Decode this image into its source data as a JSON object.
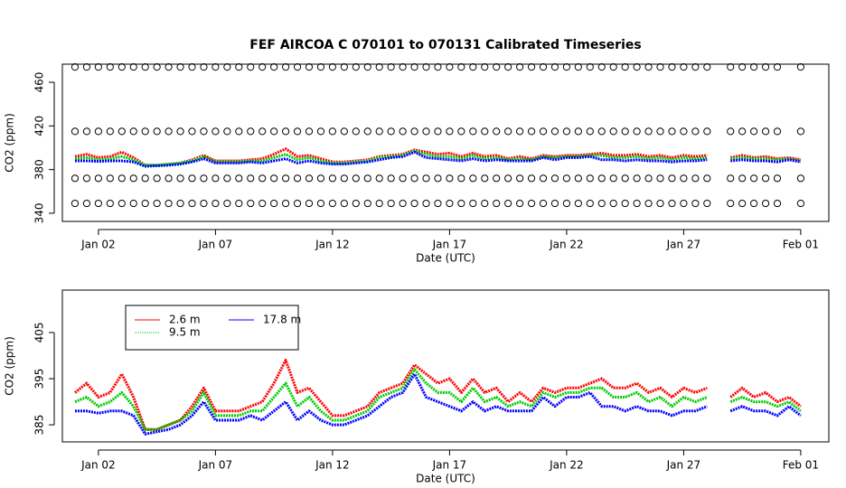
{
  "chart_data": [
    {
      "type": "scatter",
      "title": "FEF   AIRCOA  C    070101  to  070131   Calibrated Timeseries",
      "xlabel": "Date (UTC)",
      "ylabel": "CO2 (ppm)",
      "xlim": [
        0.46,
        33.2
      ],
      "ylim": [
        332.5,
        476.6
      ],
      "xticks": [
        {
          "value": 2,
          "label": "Jan 02"
        },
        {
          "value": 7,
          "label": "Jan 07"
        },
        {
          "value": 12,
          "label": "Jan 12"
        },
        {
          "value": 17,
          "label": "Jan 17"
        },
        {
          "value": 22,
          "label": "Jan 22"
        },
        {
          "value": 27,
          "label": "Jan 27"
        },
        {
          "value": 32,
          "label": "Feb 01"
        }
      ],
      "yticks": [
        340,
        380,
        420,
        460
      ],
      "x": [
        1,
        1.5,
        2,
        2.5,
        3,
        3.5,
        4,
        4.5,
        5,
        5.5,
        6,
        6.5,
        7,
        7.5,
        8,
        8.5,
        9,
        9.5,
        10,
        10.5,
        11,
        11.5,
        12,
        12.5,
        13,
        13.5,
        14,
        14.5,
        15,
        15.5,
        16,
        16.5,
        17,
        17.5,
        18,
        18.5,
        19,
        19.5,
        20,
        20.5,
        21,
        21.5,
        22,
        22.5,
        23,
        23.5,
        24,
        24.5,
        25,
        25.5,
        26,
        26.5,
        27,
        27.5,
        28,
        28.5,
        29,
        29.5,
        30,
        30.5,
        31,
        31.5,
        32
      ],
      "series": [
        {
          "color": "#000000",
          "marker": "circle",
          "values": [
            474,
            474,
            474,
            474,
            474,
            474,
            474,
            474,
            474,
            474,
            474,
            474,
            474,
            474,
            474,
            474,
            474,
            474,
            474,
            474,
            474,
            474,
            474,
            474,
            474,
            474,
            474,
            474,
            474,
            474,
            474,
            474,
            474,
            474,
            474,
            474,
            474,
            474,
            474,
            474,
            474,
            474,
            474,
            474,
            474,
            474,
            474,
            474,
            474,
            474,
            474,
            474,
            474,
            474,
            474,
            null,
            474,
            474,
            474,
            474,
            474,
            null,
            474
          ]
        },
        {
          "color": "#000000",
          "marker": "circle",
          "values": [
            415,
            415,
            415,
            415,
            415,
            415,
            415,
            415,
            415,
            415,
            415,
            415,
            415,
            415,
            415,
            415,
            415,
            415,
            415,
            415,
            415,
            415,
            415,
            415,
            415,
            415,
            415,
            415,
            415,
            415,
            415,
            415,
            415,
            415,
            415,
            415,
            415,
            415,
            415,
            415,
            415,
            415,
            415,
            415,
            415,
            415,
            415,
            415,
            415,
            415,
            415,
            415,
            415,
            415,
            415,
            null,
            415,
            415,
            415,
            415,
            415,
            null,
            415
          ]
        },
        {
          "color": "#000000",
          "marker": "circle",
          "values": [
            372,
            372,
            372,
            372,
            372,
            372,
            372,
            372,
            372,
            372,
            372,
            372,
            372,
            372,
            372,
            372,
            372,
            372,
            372,
            372,
            372,
            372,
            372,
            372,
            372,
            372,
            372,
            372,
            372,
            372,
            372,
            372,
            372,
            372,
            372,
            372,
            372,
            372,
            372,
            372,
            372,
            372,
            372,
            372,
            372,
            372,
            372,
            372,
            372,
            372,
            372,
            372,
            372,
            372,
            372,
            null,
            372,
            372,
            372,
            372,
            372,
            null,
            372
          ]
        },
        {
          "color": "#000000",
          "marker": "circle",
          "values": [
            349,
            349,
            349,
            349,
            349,
            349,
            349,
            349,
            349,
            349,
            349,
            349,
            349,
            349,
            349,
            349,
            349,
            349,
            349,
            349,
            349,
            349,
            349,
            349,
            349,
            349,
            349,
            349,
            349,
            349,
            349,
            349,
            349,
            349,
            349,
            349,
            349,
            349,
            349,
            349,
            349,
            349,
            349,
            349,
            349,
            349,
            349,
            349,
            349,
            349,
            349,
            349,
            349,
            349,
            349,
            null,
            349,
            349,
            349,
            349,
            349,
            null,
            349
          ]
        },
        {
          "color": "#ff0000",
          "marker": "dot",
          "values": [
            392,
            394,
            391,
            392,
            396,
            391,
            384,
            384,
            385,
            386,
            389,
            393,
            388,
            388,
            388,
            389,
            390,
            394,
            399,
            392,
            393,
            390,
            387,
            387,
            388,
            389,
            392,
            393,
            394,
            398,
            396,
            394,
            395,
            392,
            395,
            392,
            393,
            390,
            392,
            390,
            393,
            392,
            393,
            393,
            394,
            395,
            393,
            393,
            394,
            392,
            393,
            391,
            393,
            392,
            393,
            null,
            391,
            393,
            391,
            392,
            390,
            391,
            389
          ]
        },
        {
          "color": "#00cc00",
          "marker": "dot",
          "values": [
            390,
            391,
            389,
            390,
            392,
            389,
            384,
            384,
            385,
            386,
            388,
            392,
            387,
            387,
            387,
            388,
            388,
            391,
            394,
            389,
            391,
            388,
            386,
            386,
            387,
            388,
            391,
            392,
            393,
            397,
            394,
            392,
            392,
            390,
            393,
            390,
            391,
            389,
            390,
            389,
            392,
            391,
            392,
            392,
            393,
            393,
            391,
            391,
            392,
            390,
            391,
            389,
            391,
            390,
            391,
            null,
            390,
            391,
            390,
            390,
            389,
            390,
            388
          ]
        },
        {
          "color": "#0000ff",
          "marker": "dot",
          "values": [
            388,
            388,
            387.5,
            388,
            388,
            387,
            383,
            383.5,
            384,
            385,
            387,
            390,
            386,
            386,
            386,
            387,
            386,
            388,
            390,
            386,
            388,
            386,
            385,
            385,
            386,
            387,
            389,
            391,
            392,
            396,
            391,
            390,
            389,
            388,
            390,
            388,
            389,
            388,
            388,
            388,
            391,
            389,
            391,
            391,
            392,
            389,
            389,
            388,
            389,
            388,
            388,
            387,
            388,
            388,
            389,
            null,
            388,
            389,
            388,
            388,
            387,
            389,
            387
          ]
        }
      ]
    },
    {
      "type": "scatter",
      "xlabel": "Date (UTC)",
      "ylabel": "CO2 (ppm)",
      "xlim": [
        0.46,
        33.2
      ],
      "ylim": [
        381.3,
        414.2
      ],
      "xticks": [
        {
          "value": 2,
          "label": "Jan 02"
        },
        {
          "value": 7,
          "label": "Jan 07"
        },
        {
          "value": 12,
          "label": "Jan 12"
        },
        {
          "value": 17,
          "label": "Jan 17"
        },
        {
          "value": 22,
          "label": "Jan 22"
        },
        {
          "value": 27,
          "label": "Jan 27"
        },
        {
          "value": 32,
          "label": "Feb 01"
        }
      ],
      "yticks": [
        385,
        395,
        405
      ],
      "legend": "top-left",
      "x": [
        1,
        1.5,
        2,
        2.5,
        3,
        3.5,
        4,
        4.5,
        5,
        5.5,
        6,
        6.5,
        7,
        7.5,
        8,
        8.5,
        9,
        9.5,
        10,
        10.5,
        11,
        11.5,
        12,
        12.5,
        13,
        13.5,
        14,
        14.5,
        15,
        15.5,
        16,
        16.5,
        17,
        17.5,
        18,
        18.5,
        19,
        19.5,
        20,
        20.5,
        21,
        21.5,
        22,
        22.5,
        23,
        23.5,
        24,
        24.5,
        25,
        25.5,
        26,
        26.5,
        27,
        27.5,
        28,
        28.5,
        29,
        29.5,
        30,
        30.5,
        31,
        31.5,
        32
      ],
      "series": [
        {
          "name": "2.6 m",
          "color": "#ff0000",
          "marker": "dot",
          "values": [
            392,
            394,
            391,
            392,
            396,
            391,
            384,
            384,
            385,
            386,
            389,
            393,
            388,
            388,
            388,
            389,
            390,
            394,
            399,
            392,
            393,
            390,
            387,
            387,
            388,
            389,
            392,
            393,
            394,
            398,
            396,
            394,
            395,
            392,
            395,
            392,
            393,
            390,
            392,
            390,
            393,
            392,
            393,
            393,
            394,
            395,
            393,
            393,
            394,
            392,
            393,
            391,
            393,
            392,
            393,
            null,
            391,
            393,
            391,
            392,
            390,
            391,
            389
          ]
        },
        {
          "name": "9.5 m",
          "color": "#00cc00",
          "marker": "dot",
          "values": [
            390,
            391,
            389,
            390,
            392,
            389,
            384,
            384,
            385,
            386,
            388,
            392,
            387,
            387,
            387,
            388,
            388,
            391,
            394,
            389,
            391,
            388,
            386,
            386,
            387,
            388,
            391,
            392,
            393,
            397,
            394,
            392,
            392,
            390,
            393,
            390,
            391,
            389,
            390,
            389,
            392,
            391,
            392,
            392,
            393,
            393,
            391,
            391,
            392,
            390,
            391,
            389,
            391,
            390,
            391,
            null,
            390,
            391,
            390,
            390,
            389,
            390,
            388
          ]
        },
        {
          "name": "17.8 m",
          "color": "#0000ff",
          "marker": "dot",
          "values": [
            388,
            388,
            387.5,
            388,
            388,
            387,
            383,
            383.5,
            384,
            385,
            387,
            390,
            386,
            386,
            386,
            387,
            386,
            388,
            390,
            386,
            388,
            386,
            385,
            385,
            386,
            387,
            389,
            391,
            392,
            396,
            391,
            390,
            389,
            388,
            390,
            388,
            389,
            388,
            388,
            388,
            391,
            389,
            391,
            391,
            392,
            389,
            389,
            388,
            389,
            388,
            388,
            387,
            388,
            388,
            389,
            null,
            388,
            389,
            388,
            388,
            387,
            389,
            387
          ]
        }
      ]
    }
  ]
}
